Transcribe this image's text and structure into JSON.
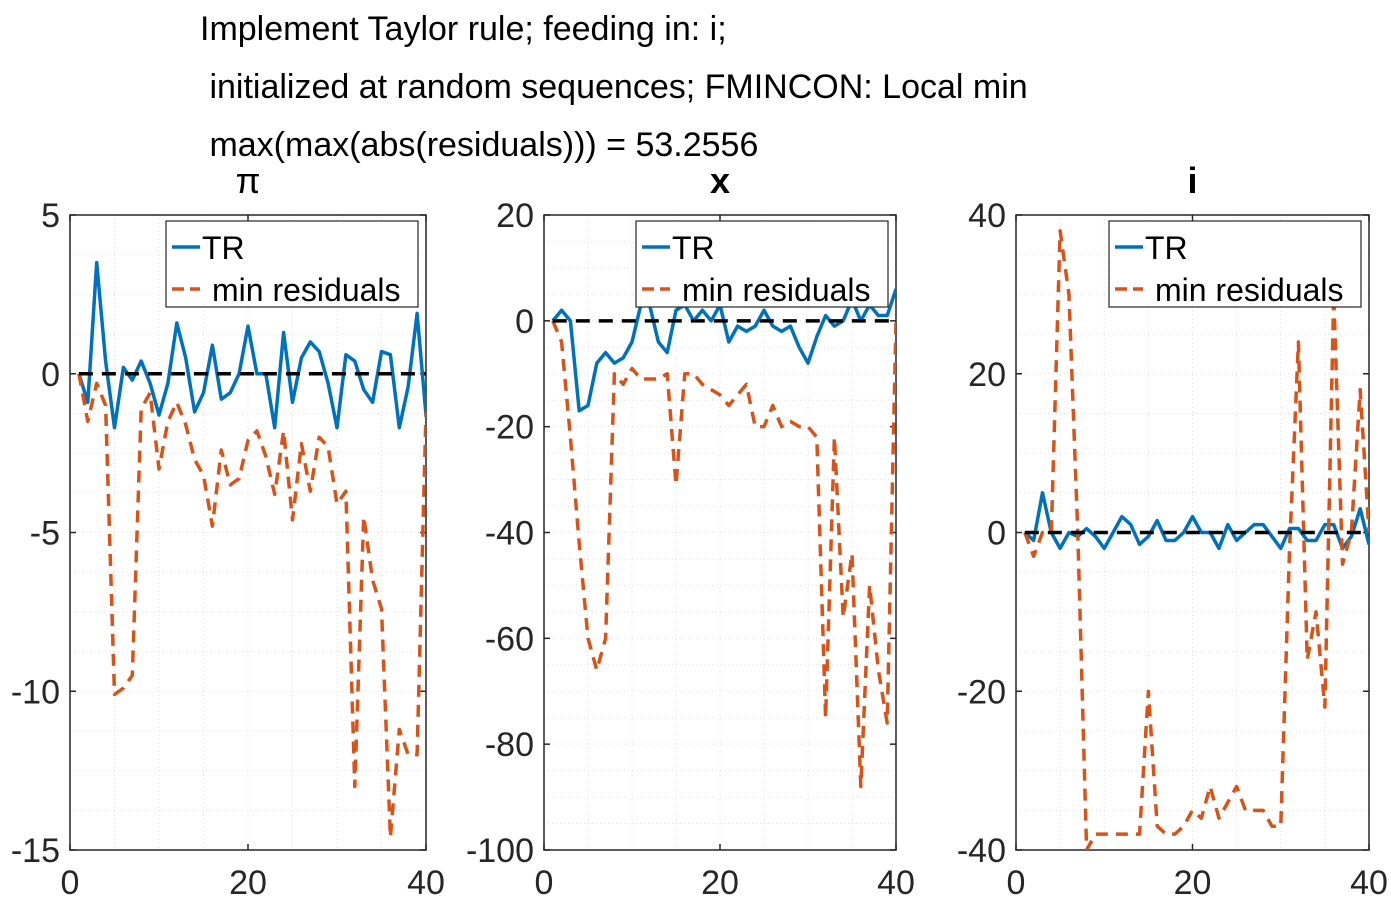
{
  "figure": {
    "title_lines": [
      "Implement Taylor rule; feeding in: i;",
      " initialized at random sequences; FMINCON: Local min",
      " max(max(abs(residuals))) = 53.2556"
    ]
  },
  "colors": {
    "tr": "#0072BD",
    "min_residuals": "#D95319",
    "zero_line": "#000000",
    "grid": "#DFDFDF",
    "axis": "#262626"
  },
  "chart_data": [
    {
      "type": "line",
      "title": "π",
      "xlim": [
        0,
        40
      ],
      "ylim": [
        -15,
        5
      ],
      "xticks": [
        0,
        20,
        40
      ],
      "yticks": [
        -15,
        -10,
        -5,
        0,
        5
      ],
      "grid": "on (minor dotted)",
      "legend": {
        "position": "top-right",
        "entries": [
          "TR",
          "min residuals"
        ]
      },
      "x": [
        1,
        2,
        3,
        4,
        5,
        6,
        7,
        8,
        9,
        10,
        11,
        12,
        13,
        14,
        15,
        16,
        17,
        18,
        19,
        20,
        21,
        22,
        23,
        24,
        25,
        26,
        27,
        28,
        29,
        30,
        31,
        32,
        33,
        34,
        35,
        36,
        37,
        38,
        39,
        40
      ],
      "series": [
        {
          "name": "TR",
          "style": "solid",
          "values": [
            0,
            -0.9,
            3.5,
            0.4,
            -1.7,
            0.2,
            -0.2,
            0.4,
            -0.3,
            -1.3,
            -0.3,
            1.6,
            0.5,
            -1.2,
            -0.6,
            0.9,
            -0.8,
            -0.6,
            0,
            1.5,
            0,
            0,
            -1.7,
            1.3,
            -0.9,
            0.5,
            1.0,
            0.7,
            -0.3,
            -1.7,
            0.6,
            0.4,
            -0.5,
            -0.9,
            0.7,
            0.6,
            -1.7,
            -0.4,
            1.9,
            -1.3
          ]
        },
        {
          "name": "min residuals",
          "style": "dashed",
          "values": [
            0,
            -1.5,
            -0.3,
            -1.0,
            -10.1,
            -9.9,
            -9.5,
            -1.1,
            -0.6,
            -3.0,
            -1.5,
            -0.9,
            -1.6,
            -2.7,
            -3.2,
            -4.8,
            -2.4,
            -3.5,
            -3.3,
            -2.1,
            -1.8,
            -2.6,
            -3.8,
            -1.8,
            -4.6,
            -2.2,
            -3.7,
            -2.0,
            -2.3,
            -4.1,
            -3.7,
            -13.0,
            -4.5,
            -6.5,
            -7.4,
            -14.6,
            -11.2,
            -12.0,
            -12.0,
            -1.2
          ]
        },
        {
          "name": "",
          "style": "dashed-black",
          "values": [
            0,
            0
          ],
          "x": [
            1,
            40
          ]
        }
      ]
    },
    {
      "type": "line",
      "title": "x",
      "xlim": [
        0,
        40
      ],
      "ylim": [
        -100,
        20
      ],
      "xticks": [
        0,
        20,
        40
      ],
      "yticks": [
        -100,
        -80,
        -60,
        -40,
        -20,
        0,
        20
      ],
      "grid": "on (minor dotted)",
      "legend": {
        "position": "top-right",
        "entries": [
          "TR",
          "min residuals"
        ]
      },
      "x": [
        1,
        2,
        3,
        4,
        5,
        6,
        7,
        8,
        9,
        10,
        11,
        12,
        13,
        14,
        15,
        16,
        17,
        18,
        19,
        20,
        21,
        22,
        23,
        24,
        25,
        26,
        27,
        28,
        29,
        30,
        31,
        32,
        33,
        34,
        35,
        36,
        37,
        38,
        39,
        40
      ],
      "series": [
        {
          "name": "TR",
          "style": "solid",
          "values": [
            0,
            2,
            0,
            -17,
            -16,
            -8,
            -6,
            -8,
            -7,
            -4,
            3,
            3,
            -4,
            -6,
            2,
            3,
            0,
            2,
            0,
            3,
            -4,
            -1,
            -2,
            -1,
            2,
            -1,
            -2,
            -1,
            -5,
            -8,
            -3,
            1,
            -1,
            0,
            4,
            0,
            3,
            1,
            1,
            6
          ]
        },
        {
          "name": "min residuals",
          "style": "dashed",
          "values": [
            0,
            -4,
            -22,
            -42,
            -60,
            -66,
            -60,
            -10,
            -12,
            -9,
            -11,
            -11,
            -11,
            -10,
            -31,
            -10,
            -10,
            -12,
            -13,
            -14,
            -16,
            -14,
            -12,
            -20,
            -20,
            -16,
            -20,
            -19,
            -20,
            -20,
            -22,
            -75,
            -22,
            -56,
            -44,
            -88,
            -50,
            -66,
            -76,
            0
          ]
        },
        {
          "name": "",
          "style": "dashed-black",
          "values": [
            0,
            0
          ],
          "x": [
            1,
            40
          ]
        }
      ]
    },
    {
      "type": "line",
      "title": "i",
      "xlim": [
        0,
        40
      ],
      "ylim": [
        -40,
        40
      ],
      "xticks": [
        0,
        20,
        40
      ],
      "yticks": [
        -40,
        -20,
        0,
        20,
        40
      ],
      "grid": "on (minor dotted)",
      "legend": {
        "position": "top-right",
        "entries": [
          "TR",
          "min residuals"
        ]
      },
      "x": [
        1,
        2,
        3,
        4,
        5,
        6,
        7,
        8,
        9,
        10,
        11,
        12,
        13,
        14,
        15,
        16,
        17,
        18,
        19,
        20,
        21,
        22,
        23,
        24,
        25,
        26,
        27,
        28,
        29,
        30,
        31,
        32,
        33,
        34,
        35,
        36,
        37,
        38,
        39,
        40
      ],
      "series": [
        {
          "name": "TR",
          "style": "solid",
          "values": [
            0,
            -1,
            5,
            0,
            -2,
            0,
            -0.5,
            0.5,
            -0.5,
            -2,
            0,
            2,
            1,
            -1.5,
            -0.5,
            1.5,
            -1,
            -1,
            0,
            2,
            0,
            0,
            -2,
            1,
            -1,
            0,
            1,
            1,
            -0.5,
            -2,
            0.5,
            0.5,
            -1,
            -1,
            1,
            1,
            -2,
            -0.5,
            3,
            -1.5
          ]
        },
        {
          "name": "min residuals",
          "style": "dashed",
          "values": [
            0,
            -3,
            0,
            0,
            38,
            30,
            0,
            -40,
            -38,
            -38,
            -38,
            -38,
            -38,
            -38,
            -20,
            -37,
            -38,
            -38,
            -37,
            -35,
            -36,
            -32,
            -36,
            -34,
            -32,
            -35,
            -35,
            -35,
            -37,
            -37,
            -2,
            24,
            -16,
            -10,
            -22,
            30,
            -4,
            0,
            18,
            0
          ]
        },
        {
          "name": "",
          "style": "dashed-black",
          "values": [
            0,
            0
          ],
          "x": [
            1,
            40
          ]
        }
      ]
    }
  ]
}
